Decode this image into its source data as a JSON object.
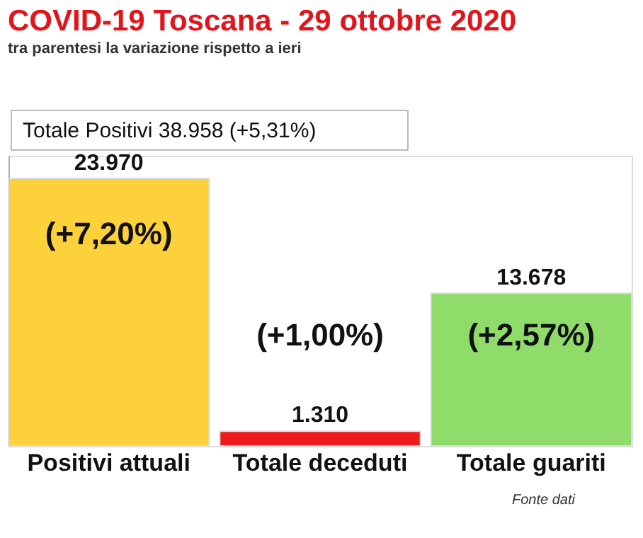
{
  "chart_data": {
    "type": "bar",
    "title": "COVID-19  Toscana - 29 ottobre 2020",
    "subtitle": "tra parentesi la variazione rispetto a ieri",
    "categories": [
      "Positivi attuali",
      "Totale deceduti",
      "Totale guariti"
    ],
    "values": [
      23970,
      1310,
      13678
    ],
    "colors": [
      "#fdd13a",
      "#ee1c1c",
      "#8fdc6a"
    ],
    "value_labels": [
      "23.970",
      "1.310",
      "13.678"
    ],
    "ylim": [
      0,
      26000
    ],
    "tick_labels": "x",
    "grid": false,
    "annotations": [
      "Totale Positivi    38.958 (+5,31%)",
      "(+7,20%)",
      "(+1,00%)",
      "(+2,57%)",
      "Fonte dati"
    ]
  }
}
